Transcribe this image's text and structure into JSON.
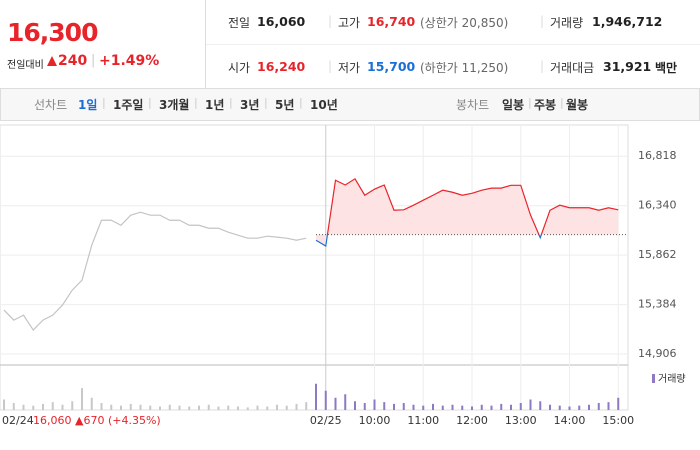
{
  "header": {
    "price": "16,300",
    "change_label": "전일대비",
    "change": "240",
    "change_rate": "+1.49%"
  },
  "quote": {
    "rows": [
      [
        {
          "label": "전일",
          "value": "16,060",
          "color": "#222222"
        },
        {
          "label": "고가",
          "value": "16,740",
          "color": "#e8242b",
          "note": "(상한가 20,850)"
        },
        {
          "label": "거래량",
          "value": "1,946,712",
          "color": "#222222"
        }
      ],
      [
        {
          "label": "시가",
          "value": "16,240",
          "color": "#e8242b"
        },
        {
          "label": "저가",
          "value": "15,700",
          "color": "#1a6fd6",
          "note": "(하한가 11,250)"
        },
        {
          "label": "거래대금",
          "value": "31,921",
          "color": "#222222",
          "unit": "백만"
        }
      ]
    ]
  },
  "tabs": {
    "line_label": "선차트",
    "line": [
      "1일",
      "1주일",
      "3개월",
      "1년",
      "3년",
      "5년",
      "10년"
    ],
    "selected_index": 0,
    "candle_label": "봉차트",
    "candle": [
      "일봉",
      "주봉",
      "월봉"
    ]
  },
  "chart_data": {
    "type": "line",
    "categories": [
      null,
      "02/24",
      null,
      null,
      null,
      null,
      null,
      null,
      null,
      null,
      null,
      null,
      null,
      null,
      null,
      null,
      null,
      null,
      null,
      null,
      null,
      null,
      null,
      null,
      null,
      null,
      null,
      null,
      null,
      null,
      null,
      null,
      null,
      "02/25",
      null,
      null,
      null,
      null,
      "10:00",
      null,
      null,
      null,
      null,
      "11:00",
      null,
      null,
      null,
      null,
      "12:00",
      null,
      null,
      null,
      null,
      "13:00",
      null,
      null,
      null,
      null,
      "14:00",
      null,
      null,
      null,
      null,
      "15:00"
    ],
    "series": [
      {
        "color": "#c4c4c4",
        "values": [
          15331,
          15234,
          15282,
          15138,
          15234,
          15282,
          15379,
          15524,
          15620,
          15958,
          16199,
          16199,
          16151,
          16248,
          16277,
          16248,
          16248,
          16199,
          16199,
          16151,
          16151,
          16122,
          16122,
          16084,
          16055,
          16026,
          16026,
          16045,
          16036,
          16026,
          16006,
          16026,
          null,
          null,
          null,
          null,
          null,
          null,
          null,
          null,
          null,
          null,
          null,
          null,
          null,
          null,
          null,
          null,
          null,
          null,
          null,
          null,
          null,
          null,
          null,
          null,
          null,
          null,
          null,
          null,
          null,
          null,
          null,
          null
        ]
      },
      {
        "color": "#e8242b",
        "down_color": "#1a6fd6",
        "fill": "#fde3e3",
        "values": [
          null,
          null,
          null,
          null,
          null,
          null,
          null,
          null,
          null,
          null,
          null,
          null,
          null,
          null,
          null,
          null,
          null,
          null,
          null,
          null,
          null,
          null,
          null,
          null,
          null,
          null,
          null,
          null,
          null,
          null,
          null,
          null,
          16006,
          15950,
          16586,
          16540,
          16600,
          16441,
          16500,
          16540,
          16296,
          16300,
          16345,
          16393,
          16441,
          16490,
          16470,
          16441,
          16460,
          16490,
          16510,
          16510,
          16537,
          16537,
          16250,
          16030,
          16296,
          16345,
          16320,
          16320,
          16320,
          16296,
          16320,
          16300
        ]
      }
    ],
    "baseline": 16060,
    "ylim": [
      14800,
      17120
    ],
    "yticks": [
      {
        "value": 14906,
        "label": "14,906"
      },
      {
        "value": 15384,
        "label": "15,384"
      },
      {
        "value": 15862,
        "label": "15,862"
      },
      {
        "value": 16340,
        "label": "16,340"
      },
      {
        "value": 16818,
        "label": "16,818"
      }
    ],
    "grid": true,
    "volume": {
      "legend": "거래량",
      "ylim": [
        0,
        40
      ],
      "series": [
        {
          "color": "#c8c8c8",
          "values": [
            12,
            8,
            6,
            5,
            7,
            9,
            6,
            10,
            25,
            14,
            8,
            6,
            5,
            7,
            6,
            5,
            4,
            6,
            5,
            4,
            5,
            6,
            4,
            5,
            4,
            3,
            5,
            4,
            6,
            5,
            7,
            9,
            null,
            null,
            null,
            null,
            null,
            null,
            null,
            null,
            null,
            null,
            null,
            null,
            null,
            null,
            null,
            null,
            null,
            null,
            null,
            null,
            null,
            null,
            null,
            null,
            null,
            null,
            null,
            null,
            null,
            null,
            null,
            null
          ]
        },
        {
          "color": "#8e79c4",
          "values": [
            null,
            null,
            null,
            null,
            null,
            null,
            null,
            null,
            null,
            null,
            null,
            null,
            null,
            null,
            null,
            null,
            null,
            null,
            null,
            null,
            null,
            null,
            null,
            null,
            null,
            null,
            null,
            null,
            null,
            null,
            null,
            null,
            30,
            22,
            14,
            18,
            10,
            8,
            12,
            9,
            7,
            8,
            6,
            5,
            7,
            5,
            6,
            5,
            4,
            6,
            5,
            7,
            6,
            8,
            12,
            10,
            6,
            5,
            4,
            5,
            6,
            8,
            9,
            14
          ]
        }
      ]
    },
    "annotation": "16,060 ▲670 (+4.35%)"
  }
}
